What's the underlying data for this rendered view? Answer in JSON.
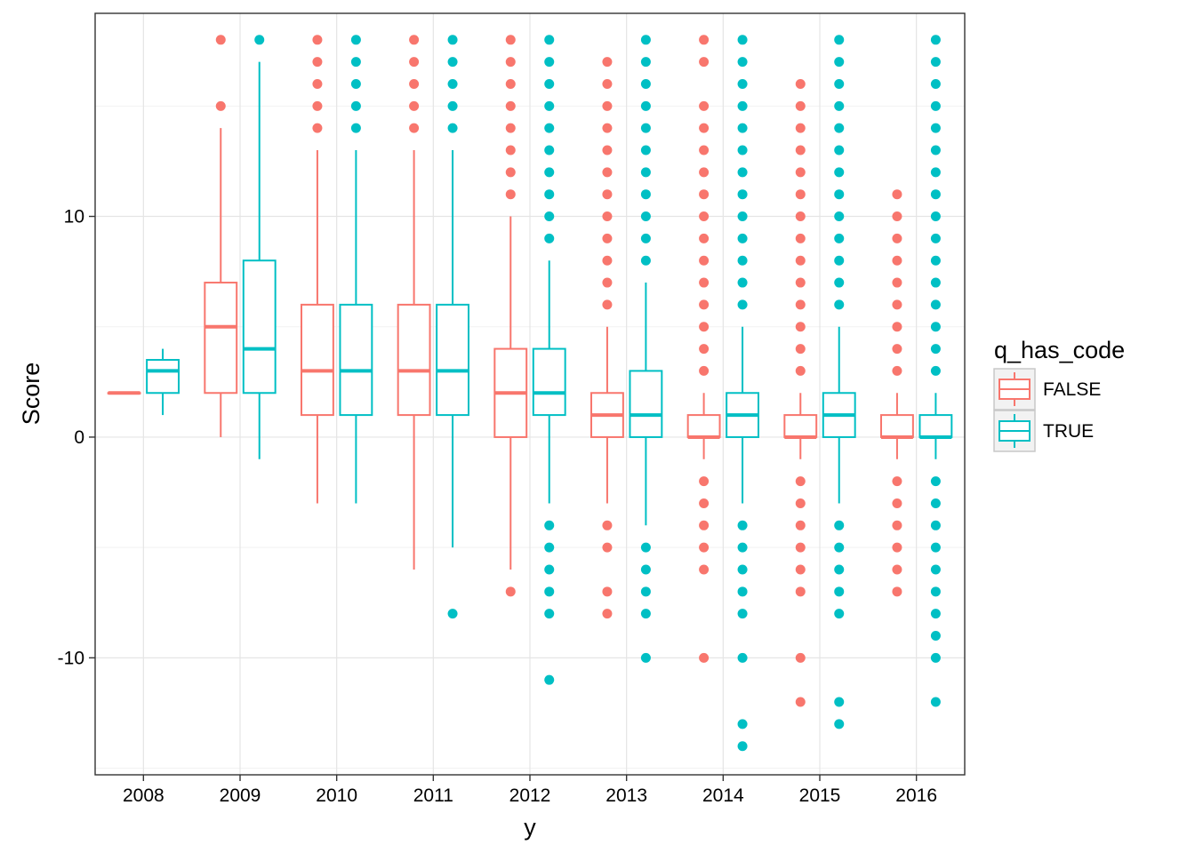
{
  "chart_data": {
    "type": "boxplot",
    "title": "",
    "xlabel": "y",
    "ylabel": "Score",
    "ylim": [
      -15.3,
      19.2
    ],
    "y_ticks": [
      -10,
      0,
      10
    ],
    "y_tick_labels": [
      "-10",
      "0",
      "10"
    ],
    "grid": true,
    "legend_position": "right",
    "legend_title": "q_has_code",
    "categories": [
      "2008",
      "2009",
      "2010",
      "2011",
      "2012",
      "2013",
      "2014",
      "2015",
      "2016"
    ],
    "series": [
      {
        "name": "FALSE",
        "color": "#F8766D",
        "boxes": [
          {
            "category": "2008",
            "lower_whisker": 2,
            "q1": 2,
            "median": 2,
            "q3": 2,
            "upper_whisker": 2,
            "outliers": []
          },
          {
            "category": "2009",
            "lower_whisker": 0,
            "q1": 2,
            "median": 5,
            "q3": 7,
            "upper_whisker": 14,
            "outliers": [
              15,
              18
            ]
          },
          {
            "category": "2010",
            "lower_whisker": -3,
            "q1": 1,
            "median": 3,
            "q3": 6,
            "upper_whisker": 13,
            "outliers": [
              14,
              15,
              16,
              17,
              18
            ]
          },
          {
            "category": "2011",
            "lower_whisker": -6,
            "q1": 1,
            "median": 3,
            "q3": 6,
            "upper_whisker": 13,
            "outliers": [
              14,
              15,
              16,
              17,
              18
            ]
          },
          {
            "category": "2012",
            "lower_whisker": -6,
            "q1": 0,
            "median": 2,
            "q3": 4,
            "upper_whisker": 10,
            "outliers": [
              -7,
              11,
              12,
              13,
              14,
              15,
              16,
              17,
              18
            ]
          },
          {
            "category": "2013",
            "lower_whisker": -3,
            "q1": 0,
            "median": 1,
            "q3": 2,
            "upper_whisker": 5,
            "outliers": [
              -8,
              -7,
              -5,
              -4,
              6,
              7,
              8,
              9,
              10,
              11,
              12,
              13,
              14,
              15,
              16,
              17
            ]
          },
          {
            "category": "2014",
            "lower_whisker": -1,
            "q1": 0,
            "median": 0,
            "q3": 1,
            "upper_whisker": 2,
            "outliers": [
              -10,
              -6,
              -5,
              -4,
              -3,
              -2,
              3,
              4,
              5,
              6,
              7,
              8,
              9,
              10,
              11,
              12,
              13,
              14,
              15,
              17,
              18
            ]
          },
          {
            "category": "2015",
            "lower_whisker": -1,
            "q1": 0,
            "median": 0,
            "q3": 1,
            "upper_whisker": 2,
            "outliers": [
              -12,
              -10,
              -7,
              -6,
              -5,
              -4,
              -3,
              -2,
              3,
              4,
              5,
              6,
              7,
              8,
              9,
              10,
              11,
              12,
              13,
              14,
              15,
              16
            ]
          },
          {
            "category": "2016",
            "lower_whisker": -1,
            "q1": 0,
            "median": 0,
            "q3": 1,
            "upper_whisker": 2,
            "outliers": [
              -7,
              -6,
              -5,
              -4,
              -3,
              -2,
              3,
              4,
              5,
              6,
              7,
              8,
              9,
              10,
              11
            ]
          }
        ]
      },
      {
        "name": "TRUE",
        "color": "#00BFC4",
        "boxes": [
          {
            "category": "2008",
            "lower_whisker": 1,
            "q1": 2,
            "median": 3,
            "q3": 3.5,
            "upper_whisker": 4,
            "outliers": []
          },
          {
            "category": "2009",
            "lower_whisker": -1,
            "q1": 2,
            "median": 4,
            "q3": 8,
            "upper_whisker": 17,
            "outliers": [
              18
            ]
          },
          {
            "category": "2010",
            "lower_whisker": -3,
            "q1": 1,
            "median": 3,
            "q3": 6,
            "upper_whisker": 13,
            "outliers": [
              14,
              15,
              16,
              17,
              18
            ]
          },
          {
            "category": "2011",
            "lower_whisker": -5,
            "q1": 1,
            "median": 3,
            "q3": 6,
            "upper_whisker": 13,
            "outliers": [
              -8,
              14,
              15,
              16,
              17,
              18
            ]
          },
          {
            "category": "2012",
            "lower_whisker": -3,
            "q1": 1,
            "median": 2,
            "q3": 4,
            "upper_whisker": 8,
            "outliers": [
              -11,
              -8,
              -7,
              -6,
              -5,
              -4,
              9,
              10,
              11,
              12,
              13,
              14,
              15,
              16,
              17,
              18
            ]
          },
          {
            "category": "2013",
            "lower_whisker": -4,
            "q1": 0,
            "median": 1,
            "q3": 3,
            "upper_whisker": 7,
            "outliers": [
              -10,
              -8,
              -7,
              -6,
              -5,
              8,
              9,
              10,
              11,
              12,
              13,
              14,
              15,
              16,
              17,
              18
            ]
          },
          {
            "category": "2014",
            "lower_whisker": -3,
            "q1": 0,
            "median": 1,
            "q3": 2,
            "upper_whisker": 5,
            "outliers": [
              -14,
              -13,
              -10,
              -8,
              -7,
              -6,
              -5,
              -4,
              6,
              7,
              8,
              9,
              10,
              11,
              12,
              13,
              14,
              15,
              16,
              17,
              18
            ]
          },
          {
            "category": "2015",
            "lower_whisker": -3,
            "q1": 0,
            "median": 1,
            "q3": 2,
            "upper_whisker": 5,
            "outliers": [
              -13,
              -12,
              -8,
              -7,
              -6,
              -5,
              -4,
              6,
              7,
              8,
              9,
              10,
              11,
              12,
              13,
              14,
              15,
              16,
              17,
              18
            ]
          },
          {
            "category": "2016",
            "lower_whisker": -1,
            "q1": 0,
            "median": 0,
            "q3": 1,
            "upper_whisker": 2,
            "outliers": [
              -12,
              -10,
              -9,
              -8,
              -7,
              -6,
              -5,
              -4,
              -3,
              -2,
              3,
              4,
              5,
              6,
              7,
              8,
              9,
              10,
              11,
              12,
              13,
              14,
              15,
              16,
              17,
              18
            ]
          }
        ]
      }
    ]
  }
}
